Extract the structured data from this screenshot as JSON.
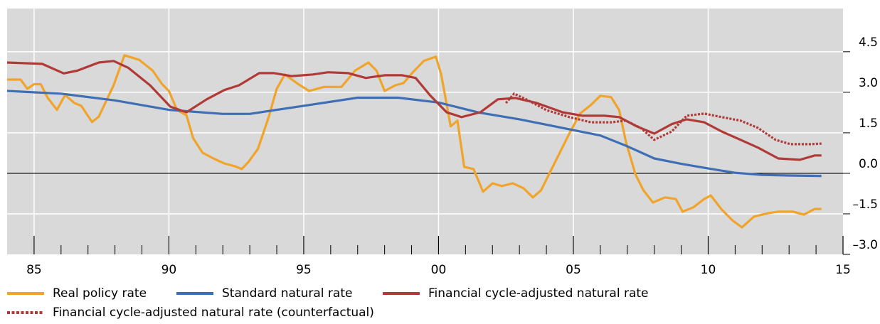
{
  "chart_data": {
    "type": "line",
    "xlim": [
      1984,
      2015
    ],
    "ylim": [
      -3,
      6.1
    ],
    "xticks": [
      {
        "value": 1985,
        "label": "85"
      },
      {
        "value": 1990,
        "label": "90"
      },
      {
        "value": 1995,
        "label": "95"
      },
      {
        "value": 2000,
        "label": "00"
      },
      {
        "value": 2005,
        "label": "05"
      },
      {
        "value": 2010,
        "label": "10"
      },
      {
        "value": 2015,
        "label": "15"
      }
    ],
    "xminorticks": [
      1986,
      1987,
      1988,
      1989,
      1991,
      1992,
      1993,
      1994,
      1996,
      1997,
      1998,
      1999,
      2001,
      2002,
      2003,
      2004,
      2006,
      2007,
      2008,
      2009,
      2011,
      2012,
      2013,
      2014
    ],
    "yticks": [
      4.5,
      {
        "value": 3,
        "label": "3.0"
      },
      1.5,
      {
        "value": 0,
        "label": "0.0"
      },
      {
        "value": -1.5,
        "label": "–1.5"
      },
      {
        "value": -3,
        "label": "–3.0"
      }
    ],
    "grid": true,
    "zero_line": true,
    "background": "#d9d9d9",
    "series": [
      {
        "name": "Real policy rate",
        "color": "#f0a42a",
        "style": "solid",
        "x": [
          1984.0,
          1984.5,
          1984.75,
          1985.0,
          1985.25,
          1985.5,
          1985.85,
          1986.15,
          1986.5,
          1986.75,
          1987.15,
          1987.4,
          1987.95,
          1988.35,
          1988.9,
          1989.4,
          1989.75,
          1990.0,
          1990.3,
          1990.65,
          1990.9,
          1991.25,
          1991.65,
          1992.05,
          1992.45,
          1992.7,
          1992.95,
          1993.3,
          1993.7,
          1994.0,
          1994.3,
          1994.8,
          1995.2,
          1995.75,
          1996.4,
          1996.9,
          1997.4,
          1997.7,
          1998.0,
          1998.4,
          1998.7,
          1999.05,
          1999.45,
          1999.9,
          2000.1,
          2000.45,
          2000.7,
          2000.95,
          2001.3,
          2001.65,
          2002.0,
          2002.35,
          2002.75,
          2003.15,
          2003.5,
          2003.8,
          2004.3,
          2004.85,
          2005.25,
          2005.65,
          2006.0,
          2006.4,
          2006.7,
          2006.95,
          2007.3,
          2007.6,
          2007.95,
          2008.4,
          2008.8,
          2009.05,
          2009.45,
          2009.85,
          2010.1,
          2010.5,
          2010.9,
          2011.25,
          2011.7,
          2012.25,
          2012.6,
          2013.15,
          2013.55,
          2013.95,
          2014.2
        ],
        "values": [
          3.47,
          3.47,
          3.13,
          3.3,
          3.3,
          2.8,
          2.35,
          2.9,
          2.6,
          2.5,
          1.9,
          2.1,
          3.26,
          4.37,
          4.2,
          3.8,
          3.3,
          3.05,
          2.35,
          2.15,
          1.3,
          0.76,
          0.55,
          0.37,
          0.26,
          0.16,
          0.42,
          0.9,
          2.08,
          3.13,
          3.66,
          3.3,
          3.05,
          3.2,
          3.2,
          3.8,
          4.1,
          3.8,
          3.05,
          3.26,
          3.34,
          3.74,
          4.16,
          4.32,
          3.66,
          1.74,
          1.95,
          0.24,
          0.16,
          -0.68,
          -0.37,
          -0.47,
          -0.37,
          -0.55,
          -0.89,
          -0.63,
          0.37,
          1.47,
          2.21,
          2.53,
          2.87,
          2.82,
          2.34,
          1.16,
          -0.03,
          -0.63,
          -1.08,
          -0.89,
          -0.95,
          -1.42,
          -1.26,
          -0.95,
          -0.82,
          -1.34,
          -1.74,
          -2.0,
          -1.6,
          -1.47,
          -1.42,
          -1.42,
          -1.53,
          -1.32,
          -1.32
        ]
      },
      {
        "name": "Standard natural rate",
        "color": "#3e6fb5",
        "style": "solid",
        "x": [
          1984.0,
          1986.0,
          1988.0,
          1990.0,
          1992.0,
          1993.0,
          1995.0,
          1997.0,
          1998.5,
          2000.0,
          2001.5,
          2003.0,
          2004.5,
          2006.0,
          2007.0,
          2008.0,
          2009.0,
          2010.0,
          2011.0,
          2012.0,
          2013.0,
          2014.2
        ],
        "values": [
          3.05,
          2.95,
          2.7,
          2.35,
          2.2,
          2.2,
          2.5,
          2.8,
          2.8,
          2.62,
          2.25,
          2.0,
          1.7,
          1.4,
          1.0,
          0.55,
          0.35,
          0.18,
          0.02,
          -0.06,
          -0.08,
          -0.1
        ]
      },
      {
        "name": "Financial cycle-adjusted natural rate",
        "color": "#b03a37",
        "style": "solid",
        "x": [
          1984.0,
          1985.3,
          1986.1,
          1986.6,
          1987.4,
          1987.95,
          1988.5,
          1989.3,
          1990.05,
          1990.65,
          1991.4,
          1992.05,
          1992.6,
          1993.35,
          1993.9,
          1994.55,
          1995.35,
          1995.9,
          1996.65,
          1997.3,
          1998.0,
          1998.65,
          1999.15,
          1999.7,
          2000.3,
          2000.85,
          2001.55,
          2002.2,
          2002.85,
          2003.65,
          2004.6,
          2005.35,
          2006.15,
          2006.7,
          2007.35,
          2008.0,
          2008.65,
          2009.2,
          2009.85,
          2010.5,
          2011.2,
          2011.85,
          2012.6,
          2013.4,
          2013.95,
          2014.2
        ],
        "values": [
          4.1,
          4.05,
          3.7,
          3.8,
          4.1,
          4.16,
          3.9,
          3.26,
          2.47,
          2.26,
          2.74,
          3.08,
          3.26,
          3.71,
          3.71,
          3.6,
          3.66,
          3.74,
          3.71,
          3.53,
          3.63,
          3.63,
          3.53,
          2.87,
          2.26,
          2.08,
          2.26,
          2.74,
          2.79,
          2.6,
          2.26,
          2.13,
          2.13,
          2.08,
          1.74,
          1.47,
          1.82,
          2.0,
          1.89,
          1.55,
          1.24,
          0.95,
          0.55,
          0.5,
          0.66,
          0.66
        ]
      },
      {
        "name": "Financial cycle-adjusted natural rate (counterfactual)",
        "color": "#b03a37",
        "style": "dotted",
        "x": [
          2002.5,
          2002.8,
          2003.25,
          2004.0,
          2004.85,
          2005.65,
          2006.4,
          2006.95,
          2007.5,
          2008.0,
          2008.65,
          2009.2,
          2009.85,
          2010.5,
          2011.2,
          2011.85,
          2012.5,
          2013.05,
          2013.8,
          2014.2
        ],
        "values": [
          2.6,
          2.95,
          2.74,
          2.34,
          2.08,
          1.89,
          1.89,
          1.95,
          1.68,
          1.24,
          1.55,
          2.13,
          2.21,
          2.08,
          1.95,
          1.68,
          1.24,
          1.08,
          1.08,
          1.1
        ]
      }
    ]
  }
}
